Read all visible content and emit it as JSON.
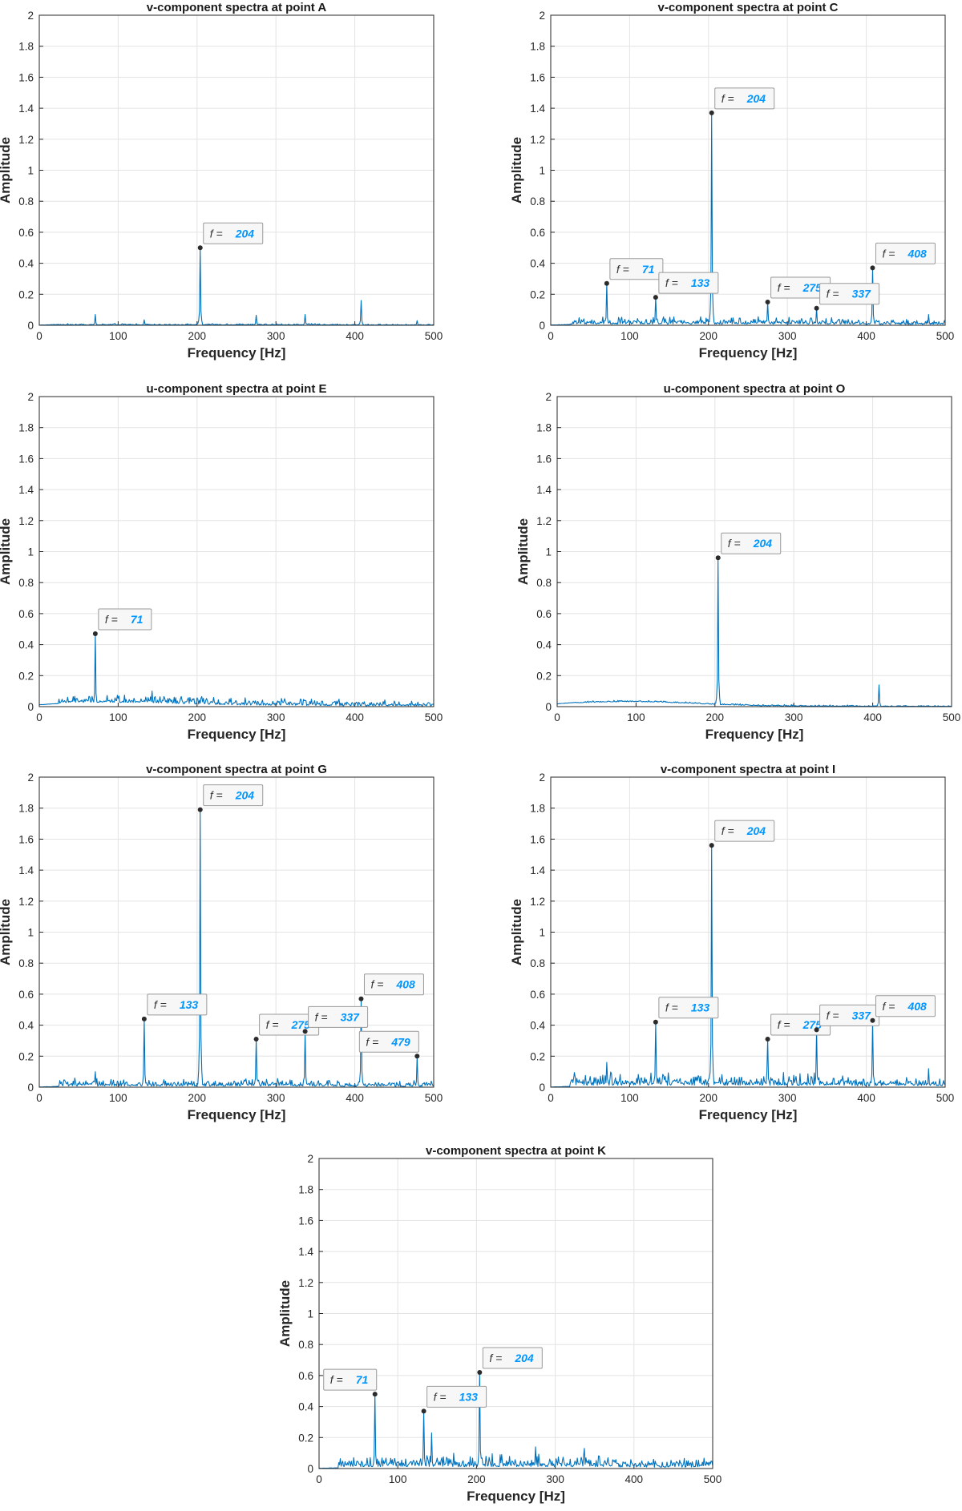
{
  "colors": {
    "series": "#0072BD",
    "datatip_value": "#0096FF",
    "axis": "#262626",
    "grid": "#E3E3E3"
  },
  "common": {
    "xlabel": "Frequency [Hz]",
    "ylabel": "Amplitude",
    "datatip_prefix": "f = "
  },
  "chart_data": [
    {
      "type": "line",
      "title": "v-component spectra at point A",
      "xlabel": "Frequency [Hz]",
      "ylabel": "Amplitude",
      "xlim": [
        0,
        500
      ],
      "ylim": [
        0,
        2
      ],
      "xticks": [
        "0",
        "100",
        "200",
        "300",
        "400",
        "500"
      ],
      "yticks": [
        "0",
        "0.2",
        "0.4",
        "0.6",
        "0.8",
        "1",
        "1.2",
        "1.4",
        "1.6",
        "1.8",
        "2"
      ],
      "grid": true,
      "noise_level": 0.006,
      "background_hump": 0.0,
      "peaks": [
        {
          "x": 71,
          "y": 0.07
        },
        {
          "x": 133,
          "y": 0.035
        },
        {
          "x": 204,
          "y": 0.5
        },
        {
          "x": 275,
          "y": 0.065
        },
        {
          "x": 337,
          "y": 0.07
        },
        {
          "x": 408,
          "y": 0.16
        },
        {
          "x": 479,
          "y": 0.03
        }
      ],
      "datatips": [
        {
          "x": 204,
          "y": 0.5,
          "label": "204",
          "side": "right"
        }
      ]
    },
    {
      "type": "line",
      "title": "v-component spectra at point C",
      "xlabel": "Frequency [Hz]",
      "ylabel": "Amplitude",
      "xlim": [
        0,
        500
      ],
      "ylim": [
        0,
        2
      ],
      "xticks": [
        "0",
        "100",
        "200",
        "300",
        "400",
        "500"
      ],
      "yticks": [
        "0",
        "0.2",
        "0.4",
        "0.6",
        "0.8",
        "1",
        "1.2",
        "1.4",
        "1.6",
        "1.8",
        "2"
      ],
      "grid": true,
      "noise_level": 0.03,
      "background_hump": 0.0,
      "peaks": [
        {
          "x": 71,
          "y": 0.27
        },
        {
          "x": 133,
          "y": 0.18
        },
        {
          "x": 204,
          "y": 1.37
        },
        {
          "x": 275,
          "y": 0.15
        },
        {
          "x": 337,
          "y": 0.11
        },
        {
          "x": 408,
          "y": 0.37
        },
        {
          "x": 479,
          "y": 0.07
        }
      ],
      "datatips": [
        {
          "x": 71,
          "y": 0.27,
          "label": "71",
          "side": "right"
        },
        {
          "x": 133,
          "y": 0.18,
          "label": "133",
          "side": "right"
        },
        {
          "x": 204,
          "y": 1.37,
          "label": "204",
          "side": "right"
        },
        {
          "x": 275,
          "y": 0.15,
          "label": "275",
          "side": "right"
        },
        {
          "x": 337,
          "y": 0.11,
          "label": "337",
          "side": "right"
        },
        {
          "x": 408,
          "y": 0.37,
          "label": "408",
          "side": "right"
        }
      ]
    },
    {
      "type": "line",
      "title": "u-component spectra at point E",
      "xlabel": "Frequency [Hz]",
      "ylabel": "Amplitude",
      "xlim": [
        0,
        500
      ],
      "ylim": [
        0,
        2
      ],
      "xticks": [
        "0",
        "100",
        "200",
        "300",
        "400",
        "500"
      ],
      "yticks": [
        "0",
        "0.2",
        "0.4",
        "0.6",
        "0.8",
        "1",
        "1.2",
        "1.4",
        "1.6",
        "1.8",
        "2"
      ],
      "grid": true,
      "noise_level": 0.03,
      "background_hump": 0.02,
      "peaks": [
        {
          "x": 71,
          "y": 0.47
        },
        {
          "x": 143,
          "y": 0.1
        }
      ],
      "datatips": [
        {
          "x": 71,
          "y": 0.47,
          "label": "71",
          "side": "right"
        }
      ]
    },
    {
      "type": "line",
      "title": "u-component spectra at point O",
      "xlabel": "Frequency [Hz]",
      "ylabel": "Amplitude",
      "xlim": [
        0,
        500
      ],
      "ylim": [
        0,
        2
      ],
      "xticks": [
        "0",
        "100",
        "200",
        "300",
        "400",
        "500"
      ],
      "yticks": [
        "0",
        "0.2",
        "0.4",
        "0.6",
        "0.8",
        "1",
        "1.2",
        "1.4",
        "1.6",
        "1.8",
        "2"
      ],
      "grid": true,
      "noise_level": 0.006,
      "background_hump": 0.03,
      "peaks": [
        {
          "x": 204,
          "y": 0.96
        },
        {
          "x": 408,
          "y": 0.14
        }
      ],
      "datatips": [
        {
          "x": 204,
          "y": 0.96,
          "label": "204",
          "side": "right"
        }
      ]
    },
    {
      "type": "line",
      "title": "v-component spectra at point G",
      "xlabel": "Frequency [Hz]",
      "ylabel": "Amplitude",
      "xlim": [
        0,
        500
      ],
      "ylim": [
        0,
        2
      ],
      "xticks": [
        "0",
        "100",
        "200",
        "300",
        "400",
        "500"
      ],
      "yticks": [
        "0",
        "0.2",
        "0.4",
        "0.6",
        "0.8",
        "1",
        "1.2",
        "1.4",
        "1.6",
        "1.8",
        "2"
      ],
      "grid": true,
      "noise_level": 0.03,
      "background_hump": 0.0,
      "peaks": [
        {
          "x": 71,
          "y": 0.1
        },
        {
          "x": 133,
          "y": 0.44
        },
        {
          "x": 204,
          "y": 1.79
        },
        {
          "x": 275,
          "y": 0.31
        },
        {
          "x": 337,
          "y": 0.36
        },
        {
          "x": 408,
          "y": 0.57
        },
        {
          "x": 479,
          "y": 0.2
        }
      ],
      "datatips": [
        {
          "x": 133,
          "y": 0.44,
          "label": "133",
          "side": "right"
        },
        {
          "x": 204,
          "y": 1.79,
          "label": "204",
          "side": "right"
        },
        {
          "x": 275,
          "y": 0.31,
          "label": "275",
          "side": "right"
        },
        {
          "x": 337,
          "y": 0.36,
          "label": "337",
          "side": "right"
        },
        {
          "x": 408,
          "y": 0.57,
          "label": "408",
          "side": "right"
        },
        {
          "x": 479,
          "y": 0.2,
          "label": "479",
          "side": "left"
        }
      ]
    },
    {
      "type": "line",
      "title": "v-component spectra at point I",
      "xlabel": "Frequency [Hz]",
      "ylabel": "Amplitude",
      "xlim": [
        0,
        500
      ],
      "ylim": [
        0,
        2
      ],
      "xticks": [
        "0",
        "100",
        "200",
        "300",
        "400",
        "500"
      ],
      "yticks": [
        "0",
        "0.2",
        "0.4",
        "0.6",
        "0.8",
        "1",
        "1.2",
        "1.4",
        "1.6",
        "1.8",
        "2"
      ],
      "grid": true,
      "noise_level": 0.05,
      "background_hump": 0.0,
      "peaks": [
        {
          "x": 71,
          "y": 0.16
        },
        {
          "x": 133,
          "y": 0.42
        },
        {
          "x": 204,
          "y": 1.56
        },
        {
          "x": 275,
          "y": 0.31
        },
        {
          "x": 337,
          "y": 0.37
        },
        {
          "x": 408,
          "y": 0.43
        },
        {
          "x": 479,
          "y": 0.12
        }
      ],
      "datatips": [
        {
          "x": 133,
          "y": 0.42,
          "label": "133",
          "side": "right"
        },
        {
          "x": 204,
          "y": 1.56,
          "label": "204",
          "side": "right"
        },
        {
          "x": 275,
          "y": 0.31,
          "label": "275",
          "side": "right"
        },
        {
          "x": 337,
          "y": 0.37,
          "label": "337",
          "side": "right"
        },
        {
          "x": 408,
          "y": 0.43,
          "label": "408",
          "side": "right"
        }
      ]
    },
    {
      "type": "line",
      "title": "v-component spectra at point K",
      "xlabel": "Frequency [Hz]",
      "ylabel": "Amplitude",
      "xlim": [
        0,
        500
      ],
      "ylim": [
        0,
        2
      ],
      "xticks": [
        "0",
        "100",
        "200",
        "300",
        "400",
        "500"
      ],
      "yticks": [
        "0",
        "0.2",
        "0.4",
        "0.6",
        "0.8",
        "1",
        "1.2",
        "1.4",
        "1.6",
        "1.8",
        "2"
      ],
      "grid": true,
      "noise_level": 0.05,
      "background_hump": 0.0,
      "peaks": [
        {
          "x": 71,
          "y": 0.48
        },
        {
          "x": 133,
          "y": 0.37
        },
        {
          "x": 143,
          "y": 0.23
        },
        {
          "x": 204,
          "y": 0.62
        },
        {
          "x": 275,
          "y": 0.14
        },
        {
          "x": 337,
          "y": 0.13
        }
      ],
      "datatips": [
        {
          "x": 71,
          "y": 0.48,
          "label": "71",
          "side": "left"
        },
        {
          "x": 133,
          "y": 0.37,
          "label": "133",
          "side": "right"
        },
        {
          "x": 204,
          "y": 0.62,
          "label": "204",
          "side": "right"
        }
      ]
    }
  ]
}
